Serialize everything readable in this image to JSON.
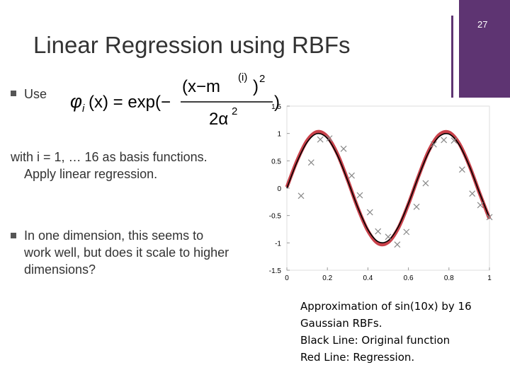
{
  "slide": {
    "page_number": "27",
    "title": "Linear Regression using RBFs",
    "bullet1": "Use",
    "formula": {
      "lhs": "φ",
      "lhs_sub": "i",
      "lhs_arg": "(x) = exp(−",
      "numerator": "(x−m",
      "num_sup": "(i)",
      "num_close": ")",
      "num_exp": "2",
      "denominator": "2α",
      "den_exp": "2",
      "close": ")"
    },
    "line2": "with i = 1, … 16 as basis functions.",
    "line3": "Apply linear regression.",
    "bullet2": [
      "In one dimension, this seems to",
      "work well, but does it scale to higher",
      "dimensions?"
    ],
    "caption": [
      "Approximation of sin(10x) by 16",
      "Gaussian RBFs.",
      "Black Line: Original function",
      "Red Line: Regression."
    ]
  },
  "chart_data": {
    "type": "line",
    "x": [
      0,
      0.05,
      0.1,
      0.15,
      0.2,
      0.25,
      0.3,
      0.35,
      0.4,
      0.45,
      0.5,
      0.55,
      0.6,
      0.65,
      0.7,
      0.75,
      0.8,
      0.85,
      0.9,
      0.95,
      1
    ],
    "series": [
      {
        "color": "#c0202a",
        "values": [
          0.02,
          0.5,
          0.87,
          1.03,
          0.94,
          0.62,
          0.15,
          -0.36,
          -0.78,
          -1.01,
          -0.99,
          -0.73,
          -0.29,
          0.22,
          0.68,
          0.97,
          1.02,
          0.82,
          0.42,
          -0.08,
          -0.56
        ]
      },
      {
        "color": "#000000",
        "values": [
          0,
          0.479,
          0.841,
          0.997,
          0.909,
          0.598,
          0.141,
          -0.351,
          -0.757,
          -0.977,
          -0.959,
          -0.706,
          -0.279,
          0.215,
          0.657,
          0.938,
          0.989,
          0.798,
          0.412,
          -0.075,
          -0.544
        ]
      }
    ],
    "points": {
      "color": "#888888",
      "x": [
        0.07,
        0.12,
        0.165,
        0.21,
        0.28,
        0.32,
        0.36,
        0.41,
        0.45,
        0.5,
        0.545,
        0.59,
        0.64,
        0.685,
        0.725,
        0.775,
        0.825,
        0.865,
        0.915,
        0.955,
        1.0
      ],
      "y": [
        -0.14,
        0.47,
        0.89,
        0.91,
        0.72,
        0.23,
        -0.13,
        -0.44,
        -0.79,
        -0.89,
        -1.03,
        -0.8,
        -0.34,
        0.09,
        0.8,
        0.88,
        0.87,
        0.34,
        -0.1,
        -0.31,
        -0.53
      ]
    },
    "xlim": [
      0,
      1
    ],
    "xticks": [
      0,
      0.2,
      0.4,
      0.6,
      0.8,
      1
    ],
    "ylim": [
      -1.5,
      1.5
    ],
    "yticks": [
      -1.5,
      -1,
      -0.5,
      0,
      0.5,
      1,
      1.5
    ]
  }
}
